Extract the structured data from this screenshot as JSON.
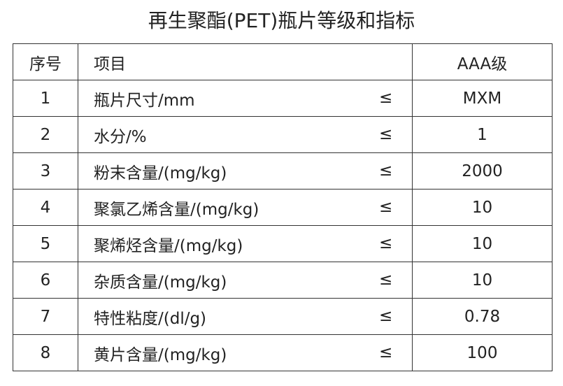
{
  "title": "再生聚酯(PET)瓶片等级和指标",
  "table": {
    "header": [
      "序号",
      "项目",
      "AAA级"
    ],
    "rows": [
      [
        "1",
        "瓶片尺寸/mm",
        "≤",
        "MXM"
      ],
      [
        "2",
        "水分/%",
        "≤",
        "1"
      ],
      [
        "3",
        "粉末含量/(mg/kg)",
        "≤",
        "2000"
      ],
      [
        "4",
        "聚氯乙烯含量/(mg/kg)",
        "≤",
        "10"
      ],
      [
        "5",
        "聚烯烃含量/(mg/kg)",
        "≤",
        "10"
      ],
      [
        "6",
        "杂质含量/(mg/kg)",
        "≤",
        "10"
      ],
      [
        "7",
        "特性粘度/(dl/g)",
        "≤",
        "0.78"
      ],
      [
        "8",
        "黄片含量/(mg/kg)",
        "≤",
        "100"
      ]
    ]
  }
}
